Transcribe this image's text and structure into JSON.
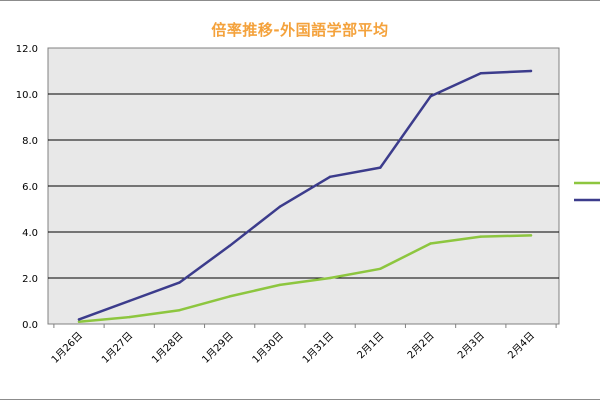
{
  "chart_data": {
    "type": "line",
    "title": "倍率推移-外国語学部平均",
    "xlabel": "",
    "ylabel": "",
    "categories": [
      "1月26日",
      "1月27日",
      "1月28日",
      "1月29日",
      "1月30日",
      "1月31日",
      "2月1日",
      "2月2日",
      "2月3日",
      "2月4日"
    ],
    "ylim": [
      0,
      12
    ],
    "yticks": [
      "0.0",
      "2.0",
      "4.0",
      "6.0",
      "8.0",
      "10.0",
      "12.0"
    ],
    "grid": true,
    "legend_position": "right",
    "series": [
      {
        "color": "#8dc63f",
        "values": [
          0.1,
          0.3,
          0.6,
          1.2,
          1.7,
          2.0,
          2.4,
          3.5,
          3.8,
          3.85
        ]
      },
      {
        "color": "#3c3c8c",
        "values": [
          0.2,
          1.0,
          1.8,
          3.4,
          5.1,
          6.4,
          6.8,
          9.9,
          10.9,
          11.0
        ]
      }
    ]
  }
}
